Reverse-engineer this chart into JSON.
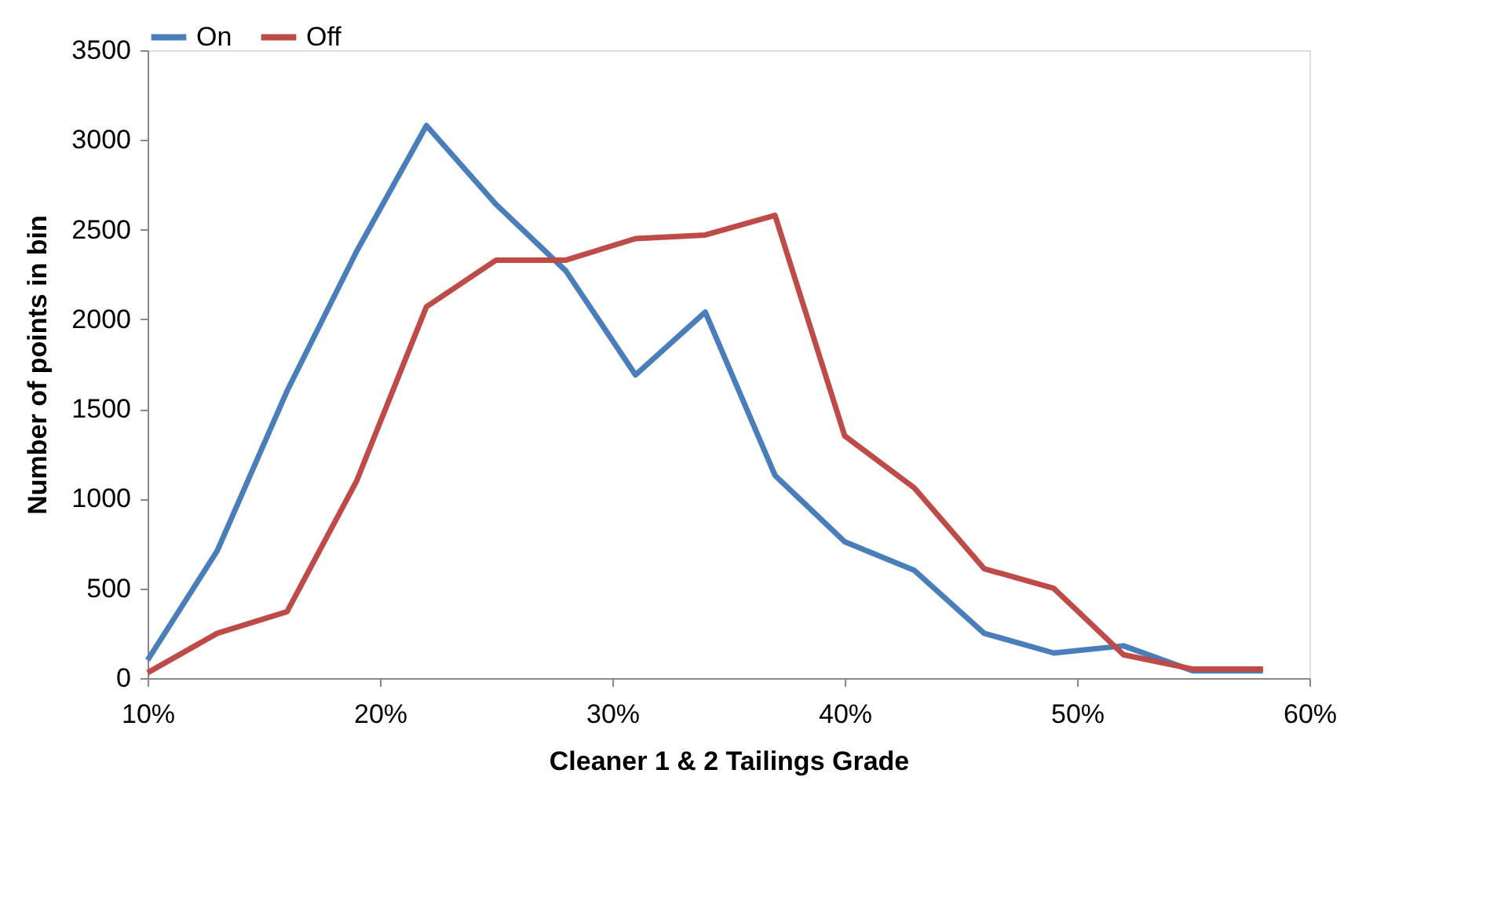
{
  "chart_data": {
    "type": "line",
    "xlabel": "Cleaner 1 & 2 Tailings Grade",
    "ylabel": "Number of points in bin",
    "x": [
      0.1,
      0.13,
      0.16,
      0.19,
      0.22,
      0.25,
      0.28,
      0.31,
      0.34,
      0.37,
      0.4,
      0.43,
      0.46,
      0.49,
      0.52,
      0.55,
      0.58
    ],
    "series": [
      {
        "name": "On",
        "color": "#4a7ebb",
        "values": [
          100,
          710,
          1600,
          2380,
          3080,
          2640,
          2270,
          1690,
          2040,
          1130,
          760,
          600,
          250,
          140,
          180,
          40,
          40
        ]
      },
      {
        "name": "Off",
        "color": "#be4b48",
        "values": [
          30,
          250,
          370,
          1100,
          2070,
          2330,
          2330,
          2450,
          2470,
          2580,
          1350,
          1060,
          610,
          500,
          130,
          50,
          50
        ]
      }
    ],
    "xlim": [
      0.1,
      0.6
    ],
    "xticks": [
      {
        "value": 0.1,
        "label": "10%"
      },
      {
        "value": 0.2,
        "label": "20%"
      },
      {
        "value": 0.3,
        "label": "30%"
      },
      {
        "value": 0.4,
        "label": "40%"
      },
      {
        "value": 0.5,
        "label": "50%"
      },
      {
        "value": 0.6,
        "label": "60%"
      }
    ],
    "ylim": [
      0,
      3500
    ],
    "yticks": [
      0,
      500,
      1000,
      1500,
      2000,
      2500,
      3000,
      3500
    ],
    "grid": false,
    "legend": "top",
    "marker": "none",
    "line_style": "solid"
  }
}
